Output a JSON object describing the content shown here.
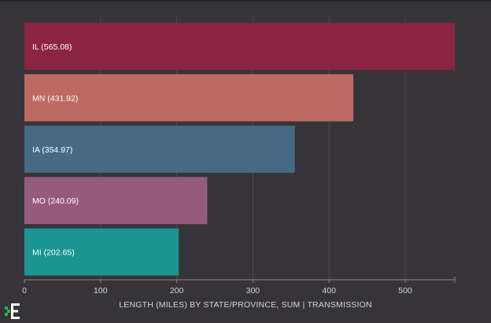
{
  "chart_data": {
    "type": "bar",
    "orientation": "horizontal",
    "categories": [
      "IL",
      "MN",
      "IA",
      "MO",
      "MI"
    ],
    "values": [
      565.08,
      431.92,
      354.97,
      240.09,
      202.65
    ],
    "labels": [
      "IL (565.08)",
      "MN (431.92)",
      "IA (354.97)",
      "MO (240.09)",
      "MI (202.65)"
    ],
    "colors": [
      "#8b2443",
      "#bd6a62",
      "#476a84",
      "#955b7d",
      "#1a9592"
    ],
    "title": "",
    "xlabel": "LENGTH (MILES) BY STATE/PROVINCE, SUM | TRANSMISSION",
    "ylabel": "",
    "xlim": [
      0,
      565.08
    ],
    "xticks": [
      0,
      100,
      200,
      300,
      400,
      500
    ],
    "grid": true
  },
  "logo": {
    "icon": "app-logo-icon",
    "colors": [
      "#ffffff",
      "#2bb24c"
    ]
  },
  "theme": {
    "background": "#363438",
    "gridline": "#4d4b50",
    "axis": "#8a888c"
  }
}
